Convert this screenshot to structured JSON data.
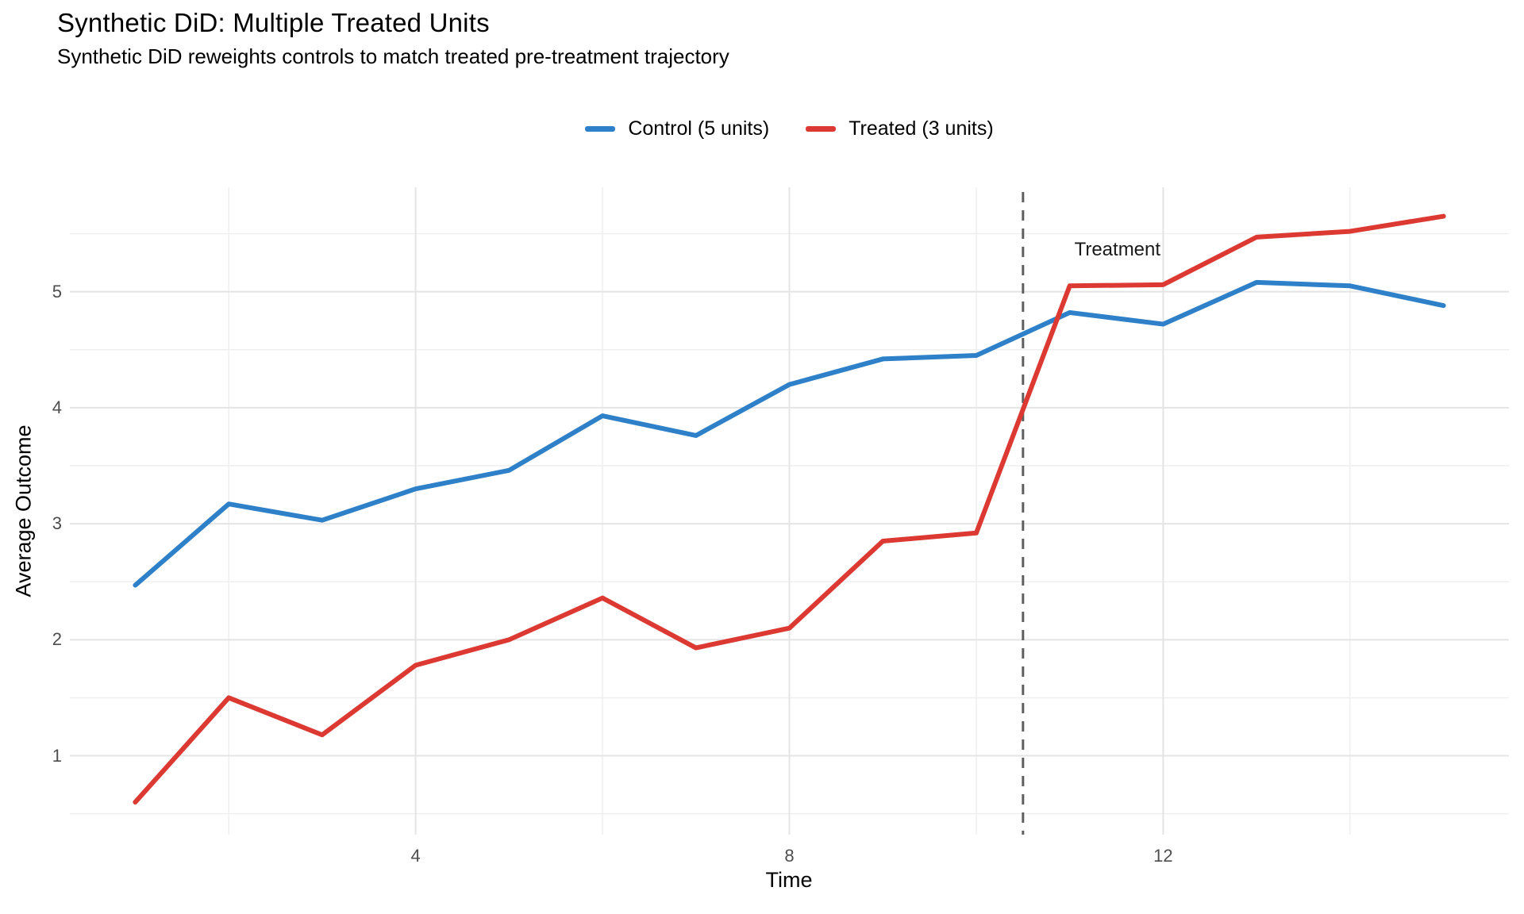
{
  "header": {
    "title": "Synthetic DiD: Multiple Treated Units",
    "subtitle": "Synthetic DiD reweights controls to match treated pre-treatment trajectory"
  },
  "colors": {
    "control": "#2E80C8",
    "treated": "#DC3932",
    "grid_major": "#E4E4E4",
    "grid_minor": "#EFEFEF",
    "vline": "#5F5F5F",
    "tick_text": "#4D4D4D"
  },
  "chart_data": {
    "type": "line",
    "title": "Synthetic DiD: Multiple Treated Units",
    "subtitle": "Synthetic DiD reweights controls to match treated pre-treatment trajectory",
    "xlabel": "Time",
    "ylabel": "Average Outcome",
    "x": [
      1,
      2,
      3,
      4,
      5,
      6,
      7,
      8,
      9,
      10,
      11,
      12,
      13,
      14,
      15
    ],
    "series": [
      {
        "name": "Control (5 units)",
        "color": "#2E80C8",
        "values": [
          2.47,
          3.17,
          3.03,
          3.3,
          3.46,
          3.93,
          3.76,
          4.2,
          4.42,
          4.45,
          4.82,
          4.72,
          5.08,
          5.05,
          4.88
        ]
      },
      {
        "name": "Treated (3 units)",
        "color": "#DC3932",
        "values": [
          0.6,
          1.5,
          1.18,
          1.78,
          2.0,
          2.36,
          1.93,
          2.1,
          2.85,
          2.92,
          5.05,
          5.06,
          5.47,
          5.52,
          5.65
        ]
      }
    ],
    "xlim": [
      0.3,
      15.7
    ],
    "ylim": [
      0.32,
      5.9
    ],
    "x_ticks": [
      4,
      8,
      12
    ],
    "y_ticks": [
      1,
      2,
      3,
      4,
      5
    ],
    "x_minor": [
      2,
      6,
      10,
      14
    ],
    "y_minor": [
      0.5,
      1.5,
      2.5,
      3.5,
      4.5,
      5.5
    ],
    "grid": true,
    "legend_position": "top",
    "vline": {
      "x": 10.5,
      "style": "dashed",
      "color": "#5F5F5F",
      "label": "Treatment",
      "label_pos": {
        "x": 11.05,
        "y": 5.35
      }
    }
  }
}
